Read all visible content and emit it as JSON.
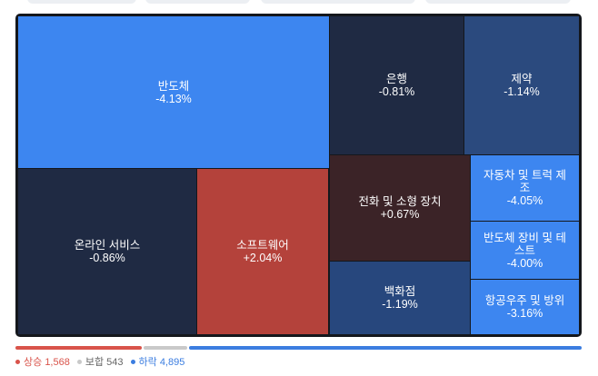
{
  "chart_data": {
    "type": "treemap",
    "tiles": [
      {
        "name": "반도체",
        "value": -4.13,
        "value_label": "-4.13%",
        "color": "#3d86f0"
      },
      {
        "name": "은행",
        "value": -0.81,
        "value_label": "-0.81%",
        "color": "#1f2a43"
      },
      {
        "name": "제약",
        "value": -1.14,
        "value_label": "-1.14%",
        "color": "#2b4a7e"
      },
      {
        "name": "온라인 서비스",
        "value": -0.86,
        "value_label": "-0.86%",
        "color": "#1f2a43"
      },
      {
        "name": "소프트웨어",
        "value": 2.04,
        "value_label": "+2.04%",
        "color": "#b4423b"
      },
      {
        "name": "전화 및 소형 장치",
        "value": 0.67,
        "value_label": "+0.67%",
        "color": "#3b2327"
      },
      {
        "name": "백화점",
        "value": -1.19,
        "value_label": "-1.19%",
        "color": "#27477d"
      },
      {
        "name": "자동차 및 트럭 제조",
        "value": -4.05,
        "value_label": "-4.05%",
        "color": "#3d86f0"
      },
      {
        "name": "반도체 장비 및 테스트",
        "value": -4.0,
        "value_label": "-4.00%",
        "color": "#3d86f0"
      },
      {
        "name": "항공우주 및 방위",
        "value": -3.16,
        "value_label": "-3.16%",
        "color": "#3d86f0"
      }
    ],
    "breadth": [
      {
        "name": "상승",
        "count": 1568,
        "count_label": "1,568",
        "color": "#d9534a"
      },
      {
        "name": "보합",
        "count": 543,
        "count_label": "543",
        "color": "#c9c9c9"
      },
      {
        "name": "하락",
        "count": 4895,
        "count_label": "4,895",
        "color": "#3b7de0"
      }
    ]
  }
}
